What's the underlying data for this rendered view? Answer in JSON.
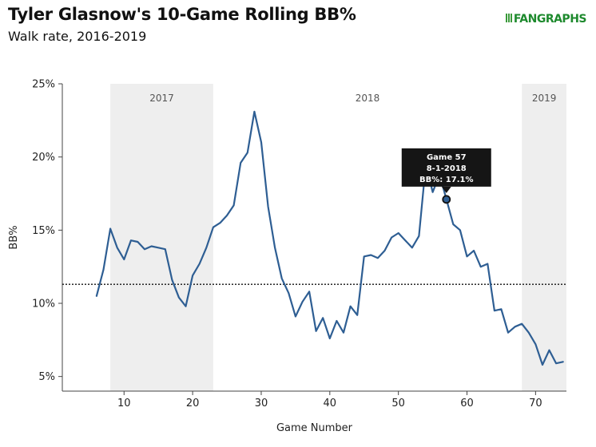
{
  "header": {
    "title": "Tyler Glasnow's 10-Game Rolling BB%",
    "subtitle": "Walk rate, 2016-2019",
    "logo_text": "FANGRAPHS"
  },
  "chart_data": {
    "type": "line",
    "title": "Tyler Glasnow's 10-Game Rolling BB%",
    "subtitle": "Walk rate, 2016-2019",
    "xlabel": "Game Number",
    "ylabel": "BB%",
    "xlim": [
      1,
      74.5
    ],
    "ylim": [
      4,
      25
    ],
    "x_ticks": [
      10,
      20,
      30,
      40,
      50,
      60,
      70
    ],
    "y_ticks": [
      5,
      10,
      15,
      20,
      25
    ],
    "y_tick_labels": [
      "5%",
      "10%",
      "15%",
      "20%",
      "25%"
    ],
    "reference_line": 11.3,
    "line_color": "#2e5e93",
    "regions": [
      {
        "label": "2017",
        "x_start": 8,
        "x_end": 23,
        "shaded": true
      },
      {
        "label": "2018",
        "x_start": 23,
        "x_end": 68,
        "shaded": false
      },
      {
        "label": "2019",
        "x_start": 68,
        "x_end": 74.5,
        "shaded": true
      }
    ],
    "series": [
      {
        "name": "10-Game Rolling BB%",
        "x": [
          6,
          7,
          8,
          9,
          10,
          11,
          12,
          13,
          14,
          15,
          16,
          17,
          18,
          19,
          20,
          21,
          22,
          23,
          24,
          25,
          26,
          27,
          28,
          29,
          30,
          31,
          32,
          33,
          34,
          35,
          36,
          37,
          38,
          39,
          40,
          41,
          42,
          43,
          44,
          45,
          46,
          47,
          48,
          49,
          50,
          51,
          52,
          53,
          54,
          55,
          56,
          57,
          58,
          59,
          60,
          61,
          62,
          63,
          64,
          65,
          66,
          67,
          68,
          69,
          70,
          71,
          72,
          73,
          74
        ],
        "values": [
          10.5,
          12.3,
          15.1,
          13.8,
          13.0,
          14.3,
          14.2,
          13.7,
          13.9,
          13.8,
          13.7,
          11.6,
          10.4,
          9.8,
          11.9,
          12.7,
          13.8,
          15.2,
          15.5,
          16.0,
          16.7,
          19.6,
          20.3,
          23.1,
          21.0,
          16.6,
          13.8,
          11.7,
          10.7,
          9.1,
          10.1,
          10.8,
          8.1,
          9.0,
          7.6,
          8.8,
          8.0,
          9.8,
          9.2,
          13.2,
          13.3,
          13.1,
          13.6,
          14.5,
          14.8,
          14.3,
          13.8,
          14.6,
          19.5,
          17.6,
          18.8,
          17.1,
          15.4,
          15.0,
          13.2,
          13.6,
          12.5,
          12.7,
          9.5,
          9.6,
          8.0,
          8.4,
          8.6,
          8.0,
          7.2,
          5.8,
          6.8,
          5.9,
          6.0
        ]
      }
    ],
    "tooltip": {
      "game": 57,
      "value": 17.1,
      "line1": "Game 57",
      "line2": "8-1-2018",
      "line3": "BB%: 17.1%"
    }
  }
}
